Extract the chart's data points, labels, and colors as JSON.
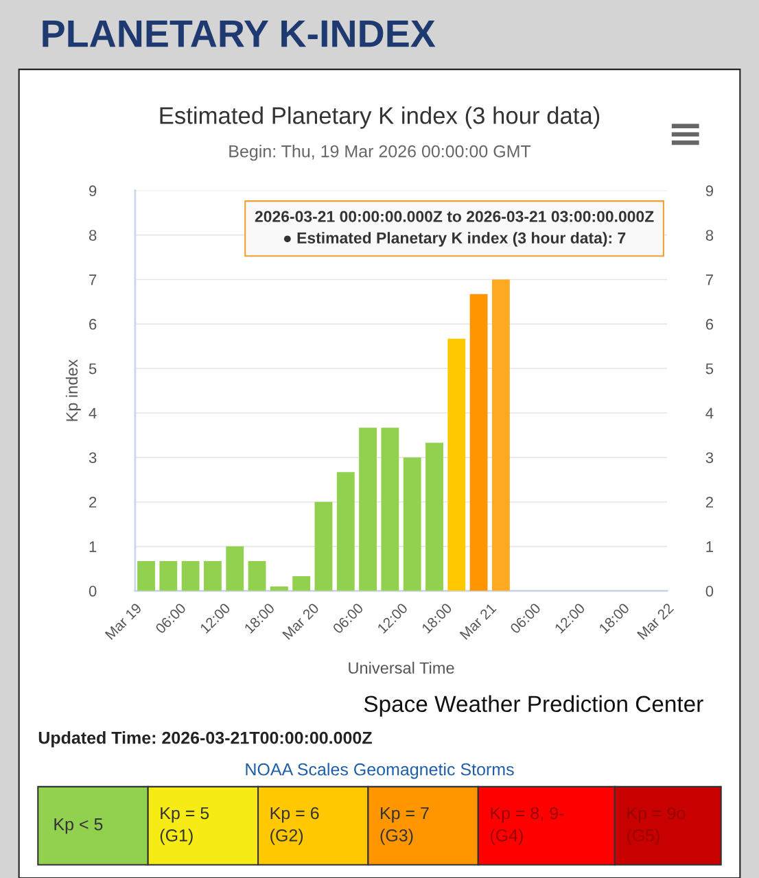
{
  "chart_data": {
    "type": "bar",
    "title": "Estimated Planetary K index (3 hour data)",
    "subtitle": "Begin: Thu, 19 Mar 2026 00:00:00 GMT",
    "xlabel": "Universal Time",
    "ylabel": "Kp index",
    "x": [
      "2026-03-19T01:30",
      "2026-03-19T04:30",
      "2026-03-19T07:30",
      "2026-03-19T10:30",
      "2026-03-19T13:30",
      "2026-03-19T16:30",
      "2026-03-19T19:30",
      "2026-03-19T22:30",
      "2026-03-20T01:30",
      "2026-03-20T04:30",
      "2026-03-20T07:30",
      "2026-03-20T10:30",
      "2026-03-20T13:30",
      "2026-03-20T16:30",
      "2026-03-20T19:30",
      "2026-03-20T22:30",
      "2026-03-21T01:30"
    ],
    "values": [
      0.67,
      0.67,
      0.67,
      0.67,
      1,
      0.67,
      0.1,
      0.33,
      2,
      2.67,
      3.67,
      3.67,
      3,
      3.33,
      5.67,
      6.67,
      7
    ],
    "colors": [
      "#92d050",
      "#92d050",
      "#92d050",
      "#92d050",
      "#92d050",
      "#92d050",
      "#92d050",
      "#92d050",
      "#92d050",
      "#92d050",
      "#92d050",
      "#92d050",
      "#92d050",
      "#92d050",
      "#ffc800",
      "#ff9500",
      "#ffaa22"
    ],
    "xlim": [
      "2026-03-19T00:00",
      "2026-03-22T00:00"
    ],
    "xticks": [
      {
        "value": "2026-03-19T00:00",
        "label": "Mar 19"
      },
      {
        "value": "2026-03-19T06:00",
        "label": "06:00"
      },
      {
        "value": "2026-03-19T12:00",
        "label": "12:00"
      },
      {
        "value": "2026-03-19T18:00",
        "label": "18:00"
      },
      {
        "value": "2026-03-20T00:00",
        "label": "Mar 20"
      },
      {
        "value": "2026-03-20T06:00",
        "label": "06:00"
      },
      {
        "value": "2026-03-20T12:00",
        "label": "12:00"
      },
      {
        "value": "2026-03-20T18:00",
        "label": "18:00"
      },
      {
        "value": "2026-03-21T00:00",
        "label": "Mar 21"
      },
      {
        "value": "2026-03-21T06:00",
        "label": "06:00"
      },
      {
        "value": "2026-03-21T12:00",
        "label": "12:00"
      },
      {
        "value": "2026-03-21T18:00",
        "label": "18:00"
      },
      {
        "value": "2026-03-22T00:00",
        "label": "Mar 22"
      }
    ],
    "ylim": [
      0,
      9
    ],
    "yticks": [
      0,
      1,
      2,
      3,
      4,
      5,
      6,
      7,
      8,
      9
    ],
    "y2lim": [
      0,
      9
    ],
    "y2ticks": [
      0,
      1,
      2,
      3,
      4,
      5,
      6,
      7,
      8,
      9
    ],
    "grid": "y",
    "annotations": [
      "2026-03-21 00:00:00.000Z to 2026-03-21 03:00:00.000Z\n● Estimated Planetary K index (3 hour data): 7",
      "PLANETARY K-INDEX",
      "Space Weather Prediction Center",
      "Updated Time: 2026-03-21T00:00:00.000Z",
      "NOAA Scales Geomagnetic Storms",
      "Kp < 5",
      "Kp = 5\n(G1)",
      "Kp = 6\n(G2)",
      "Kp = 7\n(G3)",
      "Kp = 8, 9-\n(G4)",
      "Kp = 9o\n(G5)"
    ]
  }
}
